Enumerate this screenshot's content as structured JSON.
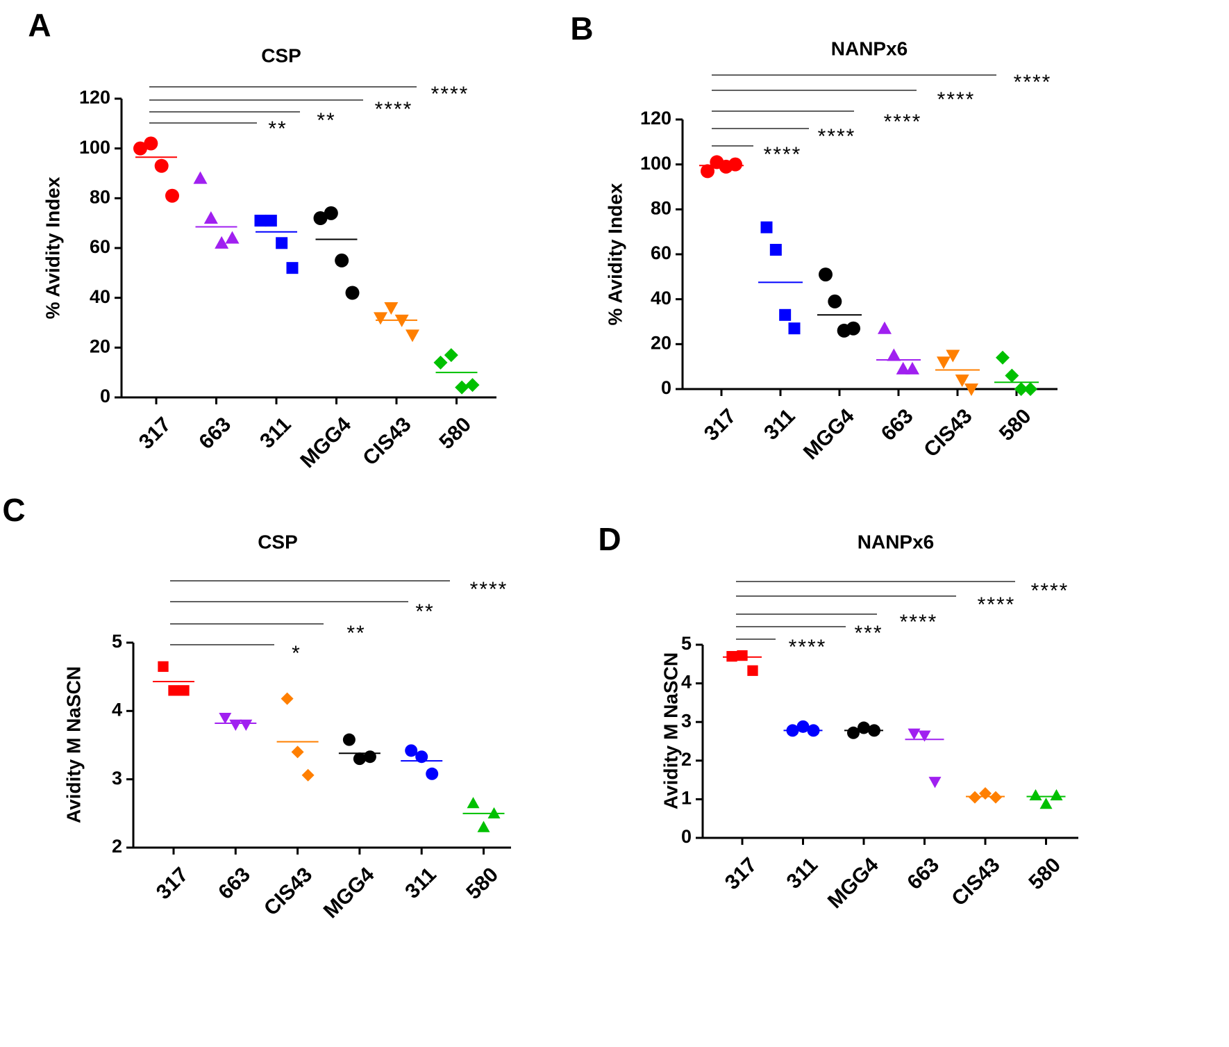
{
  "chart_data": [
    {
      "panel_label": "A",
      "type": "scatter",
      "title": "CSP",
      "ylabel": "% Avidity Index",
      "ylim": [
        0,
        120
      ],
      "yticks": [
        0,
        20,
        40,
        60,
        80,
        100,
        120
      ],
      "categories": [
        "317",
        "663",
        "311",
        "MGG4",
        "CIS43",
        "580"
      ],
      "series": [
        {
          "name": "317",
          "color": "#ff0000",
          "marker": "circle",
          "values": [
            100,
            102,
            93,
            81
          ],
          "mean": 96.5
        },
        {
          "name": "663",
          "color": "#a020f0",
          "marker": "triangle",
          "values": [
            88,
            72,
            62,
            64
          ],
          "mean": 68.5
        },
        {
          "name": "311",
          "color": "#0000ff",
          "marker": "square",
          "values": [
            71,
            71,
            62,
            52
          ],
          "mean": 66.5
        },
        {
          "name": "MGG4",
          "color": "#000000",
          "marker": "circle",
          "values": [
            72,
            74,
            55,
            42
          ],
          "mean": 63.5
        },
        {
          "name": "CIS43",
          "color": "#ff7f00",
          "marker": "triangle-down",
          "values": [
            32,
            36,
            31,
            25
          ],
          "mean": 31
        },
        {
          "name": "580",
          "color": "#00c000",
          "marker": "diamond",
          "values": [
            14,
            17,
            4,
            5
          ],
          "mean": 10
        }
      ],
      "comparisons": [
        {
          "from": "317",
          "to": "311",
          "label": "**"
        },
        {
          "from": "317",
          "to": "MGG4",
          "label": "**"
        },
        {
          "from": "317",
          "to": "CIS43",
          "label": "****"
        },
        {
          "from": "317",
          "to": "580",
          "label": "****"
        }
      ]
    },
    {
      "panel_label": "B",
      "type": "scatter",
      "title": "NANPx6",
      "ylabel": "% Avidity Index",
      "ylim": [
        0,
        120
      ],
      "yticks": [
        0,
        20,
        40,
        60,
        80,
        100,
        120
      ],
      "categories": [
        "317",
        "311",
        "MGG4",
        "663",
        "CIS43",
        "580"
      ],
      "series": [
        {
          "name": "317",
          "color": "#ff0000",
          "marker": "circle",
          "values": [
            97,
            101,
            99,
            100
          ],
          "mean": 99.5
        },
        {
          "name": "311",
          "color": "#0000ff",
          "marker": "square",
          "values": [
            72,
            62,
            33,
            27
          ],
          "mean": 47.5
        },
        {
          "name": "MGG4",
          "color": "#000000",
          "marker": "circle",
          "values": [
            51,
            39,
            26,
            27
          ],
          "mean": 33
        },
        {
          "name": "663",
          "color": "#a020f0",
          "marker": "triangle",
          "values": [
            27,
            15,
            9,
            9
          ],
          "mean": 13
        },
        {
          "name": "CIS43",
          "color": "#ff7f00",
          "marker": "triangle-down",
          "values": [
            12,
            15,
            4,
            0
          ],
          "mean": 8.5
        },
        {
          "name": "580",
          "color": "#00c000",
          "marker": "diamond",
          "values": [
            14,
            6,
            0,
            0
          ],
          "mean": 3
        }
      ],
      "comparisons": [
        {
          "from": "317",
          "to": "311",
          "label": "****"
        },
        {
          "from": "317",
          "to": "MGG4",
          "label": "****"
        },
        {
          "from": "317",
          "to": "663",
          "label": "****"
        },
        {
          "from": "317",
          "to": "CIS43",
          "label": "****"
        },
        {
          "from": "317",
          "to": "580",
          "label": "****"
        }
      ]
    },
    {
      "panel_label": "C",
      "type": "scatter",
      "title": "CSP",
      "ylabel": "Avidity M NaSCN",
      "ylim": [
        2,
        5
      ],
      "yticks": [
        2,
        3,
        4,
        5
      ],
      "categories": [
        "317",
        "663",
        "CIS43",
        "MGG4",
        "311",
        "580"
      ],
      "series": [
        {
          "name": "317",
          "color": "#ff0000",
          "marker": "square",
          "values": [
            4.65,
            4.3,
            4.3
          ],
          "mean": 4.43
        },
        {
          "name": "663",
          "color": "#a020f0",
          "marker": "triangle-down",
          "values": [
            3.9,
            3.8,
            3.8
          ],
          "mean": 3.82
        },
        {
          "name": "CIS43",
          "color": "#ff7f00",
          "marker": "diamond",
          "values": [
            4.18,
            3.4,
            3.06
          ],
          "mean": 3.55
        },
        {
          "name": "MGG4",
          "color": "#000000",
          "marker": "circle",
          "values": [
            3.58,
            3.3,
            3.33
          ],
          "mean": 3.38
        },
        {
          "name": "311",
          "color": "#0000ff",
          "marker": "circle",
          "values": [
            3.42,
            3.33,
            3.08
          ],
          "mean": 3.27
        },
        {
          "name": "580",
          "color": "#00c000",
          "marker": "triangle",
          "values": [
            2.65,
            2.3,
            2.5
          ],
          "mean": 2.5
        }
      ],
      "comparisons": [
        {
          "from": "317",
          "to": "CIS43",
          "label": "*"
        },
        {
          "from": "317",
          "to": "MGG4",
          "label": "**"
        },
        {
          "from": "317",
          "to": "311",
          "label": "**"
        },
        {
          "from": "317",
          "to": "580",
          "label": "****"
        }
      ]
    },
    {
      "panel_label": "D",
      "type": "scatter",
      "title": "NANPx6",
      "ylabel": "Avidity M NaSCN",
      "ylim": [
        0,
        5
      ],
      "yticks": [
        0,
        1,
        2,
        3,
        4,
        5
      ],
      "categories": [
        "317",
        "311",
        "MGG4",
        "663",
        "CIS43",
        "580"
      ],
      "series": [
        {
          "name": "317",
          "color": "#ff0000",
          "marker": "square",
          "values": [
            4.7,
            4.72,
            4.33
          ],
          "mean": 4.68
        },
        {
          "name": "311",
          "color": "#0000ff",
          "marker": "circle",
          "values": [
            2.78,
            2.88,
            2.78
          ],
          "mean": 2.78
        },
        {
          "name": "MGG4",
          "color": "#000000",
          "marker": "circle",
          "values": [
            2.72,
            2.85,
            2.78
          ],
          "mean": 2.78
        },
        {
          "name": "663",
          "color": "#a020f0",
          "marker": "triangle-down",
          "values": [
            2.7,
            2.65,
            1.45
          ],
          "mean": 2.55
        },
        {
          "name": "CIS43",
          "color": "#ff7f00",
          "marker": "diamond",
          "values": [
            1.05,
            1.15,
            1.05
          ],
          "mean": 1.07
        },
        {
          "name": "580",
          "color": "#00c000",
          "marker": "triangle",
          "values": [
            1.1,
            0.88,
            1.1
          ],
          "mean": 1.07
        }
      ],
      "comparisons": [
        {
          "from": "317",
          "to": "311",
          "label": "****"
        },
        {
          "from": "317",
          "to": "MGG4",
          "label": "***"
        },
        {
          "from": "317",
          "to": "663",
          "label": "****"
        },
        {
          "from": "317",
          "to": "CIS43",
          "label": "****"
        },
        {
          "from": "317",
          "to": "580",
          "label": "****"
        }
      ]
    }
  ]
}
